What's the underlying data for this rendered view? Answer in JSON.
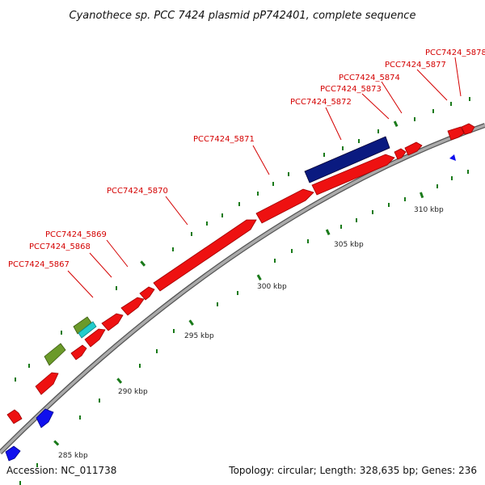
{
  "title": "Cyanothece sp. PCC 7424 plasmid pP742401, complete sequence",
  "footer": {
    "accession": "Accession: NC_011738",
    "summary": "Topology: circular; Length: 328,635 bp; Genes: 236"
  },
  "colors": {
    "backbone": "#8a8a8a",
    "gene_forward": "#ee1111",
    "gene_blue": "#1010ee",
    "gene_navy": "#0a1a80",
    "gene_olive": "#6b9a2a",
    "gene_cyan": "#22cccc",
    "tick": "#1a7a1a",
    "label": "#d40000"
  },
  "gene_labels": [
    "PCC7424_5867",
    "PCC7424_5868",
    "PCC7424_5869",
    "PCC7424_5870",
    "PCC7424_5871",
    "PCC7424_5872",
    "PCC7424_5873",
    "PCC7424_5874",
    "PCC7424_5877",
    "PCC7424_5878"
  ],
  "scale_labels": [
    "285 kbp",
    "290 kbp",
    "295 kbp",
    "300 kbp",
    "305 kbp",
    "310 kbp"
  ]
}
